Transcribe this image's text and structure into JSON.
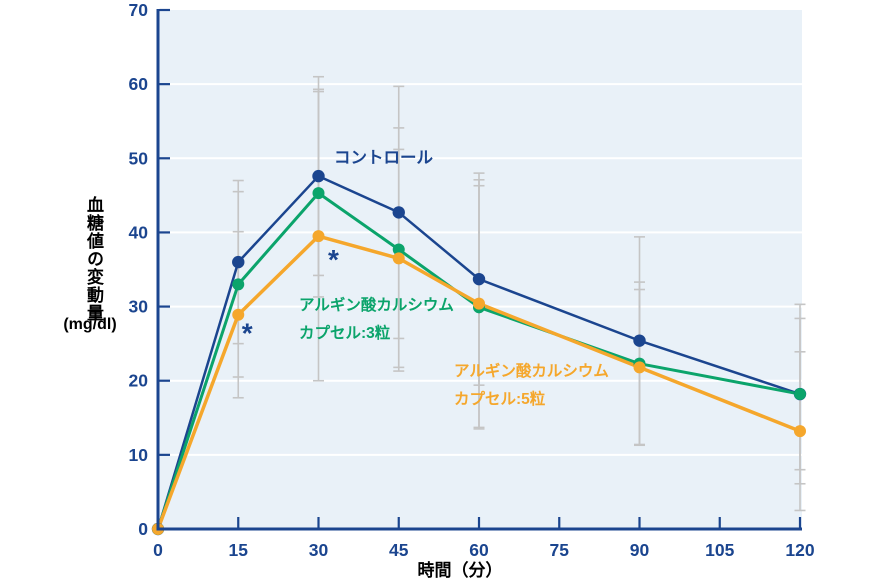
{
  "chart_data": {
    "type": "line",
    "title": "",
    "xlabel": "時間（分）",
    "ylabel": "血糖値の変動量",
    "ylabel_unit": "(mg/dl)",
    "x": [
      0,
      15,
      30,
      45,
      60,
      90,
      120
    ],
    "x_ticks": [
      0,
      15,
      30,
      45,
      60,
      75,
      90,
      105,
      120
    ],
    "y_ticks": [
      0,
      10,
      20,
      30,
      40,
      50,
      60,
      70
    ],
    "xlim": [
      0,
      120
    ],
    "ylim": [
      0,
      70
    ],
    "grid": "horizontal-white-on-light-blue-panel",
    "legend_position": "inline-labels-near-lines",
    "series": [
      {
        "name": "コントロール",
        "label_lines": [
          "コントロール"
        ],
        "color": "#1b458f",
        "values": [
          0,
          36.0,
          47.6,
          42.7,
          33.7,
          25.4,
          18.2
        ],
        "errors": [
          0,
          11.0,
          13.4,
          17.0,
          14.3,
          14.0,
          12.1
        ]
      },
      {
        "name": "アルギン酸カルシウム カプセル:3粒",
        "label_lines": [
          "アルギン酸カルシウム",
          "カプセル:3粒"
        ],
        "color": "#0ba46b",
        "values": [
          0,
          33.0,
          45.3,
          37.7,
          29.9,
          22.3,
          18.2
        ],
        "errors": [
          0,
          12.5,
          14.0,
          16.4,
          16.4,
          11.0,
          10.2
        ]
      },
      {
        "name": "アルギン酸カルシウム カプセル:5粒",
        "label_lines": [
          "アルギン酸カルシウム",
          "カプセル:5粒"
        ],
        "color": "#f5a72c",
        "values": [
          0,
          28.9,
          39.5,
          36.5,
          30.4,
          21.8,
          13.2
        ],
        "errors": [
          0,
          11.2,
          19.5,
          14.7,
          16.7,
          10.5,
          10.7
        ]
      }
    ],
    "annotations": [
      {
        "text": "*",
        "x": 15,
        "value": 27.2,
        "dx": 9
      },
      {
        "text": "*",
        "x": 30,
        "value": 37.1,
        "dx": 15
      }
    ]
  },
  "colors": {
    "axis": "#1b458f",
    "tick_label": "#1b458f",
    "panel": "#e9f1f8",
    "grid": "#ffffff",
    "error_bar": "#c5c5c5",
    "annotation": "#1b458f"
  }
}
